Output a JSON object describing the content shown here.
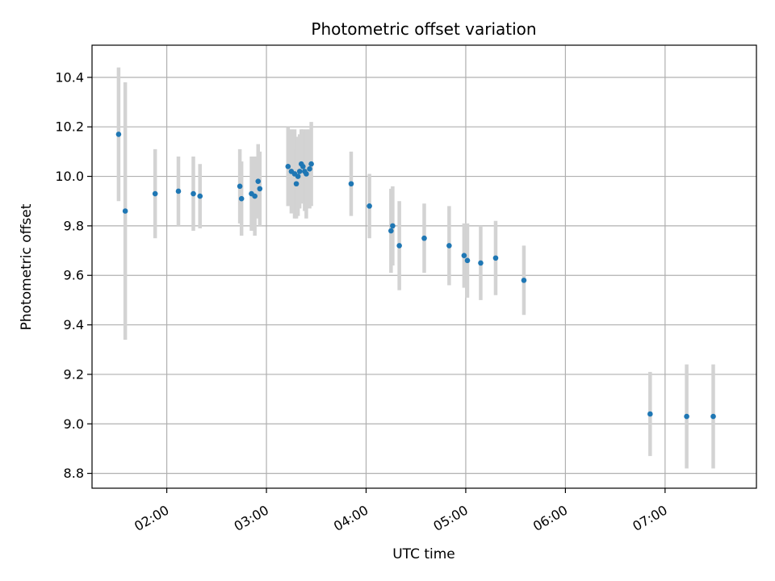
{
  "chart_data": {
    "type": "scatter",
    "title": "Photometric offset variation",
    "xlabel": "UTC time",
    "ylabel": "Photometric offset",
    "x_unit": "UTC time (HH:MM)",
    "xlim": [
      "01:15",
      "07:55"
    ],
    "ylim": [
      8.74,
      10.53
    ],
    "x_ticks": [
      "02:00",
      "03:00",
      "04:00",
      "05:00",
      "06:00",
      "07:00"
    ],
    "y_ticks": [
      "8.8",
      "9.0",
      "9.2",
      "9.4",
      "9.6",
      "9.8",
      "10.0",
      "10.2",
      "10.4"
    ],
    "grid": true,
    "legend": "none",
    "colors": {
      "marker": "#1f77b4",
      "error_bar": "#d3d3d3",
      "grid": "#b0b0b0"
    },
    "series": [
      {
        "points": [
          {
            "x": "01:31",
            "y": 10.17,
            "err": 0.27
          },
          {
            "x": "01:35",
            "y": 9.86,
            "err": 0.52
          },
          {
            "x": "01:53",
            "y": 9.93,
            "err": 0.18
          },
          {
            "x": "02:07",
            "y": 9.94,
            "err": 0.14
          },
          {
            "x": "02:16",
            "y": 9.93,
            "err": 0.15
          },
          {
            "x": "02:20",
            "y": 9.92,
            "err": 0.13
          },
          {
            "x": "02:44",
            "y": 9.96,
            "err": 0.15
          },
          {
            "x": "02:45",
            "y": 9.91,
            "err": 0.15
          },
          {
            "x": "02:51",
            "y": 9.93,
            "err": 0.15
          },
          {
            "x": "02:53",
            "y": 9.92,
            "err": 0.16
          },
          {
            "x": "02:55",
            "y": 9.98,
            "err": 0.15
          },
          {
            "x": "02:56",
            "y": 9.95,
            "err": 0.15
          },
          {
            "x": "03:13",
            "y": 10.04,
            "err": 0.16
          },
          {
            "x": "03:15",
            "y": 10.02,
            "err": 0.17
          },
          {
            "x": "03:17",
            "y": 10.01,
            "err": 0.18
          },
          {
            "x": "03:18",
            "y": 9.97,
            "err": 0.14
          },
          {
            "x": "03:19",
            "y": 10.0,
            "err": 0.16
          },
          {
            "x": "03:20",
            "y": 10.02,
            "err": 0.15
          },
          {
            "x": "03:21",
            "y": 10.05,
            "err": 0.14
          },
          {
            "x": "03:22",
            "y": 10.04,
            "err": 0.15
          },
          {
            "x": "03:23",
            "y": 10.02,
            "err": 0.16
          },
          {
            "x": "03:24",
            "y": 10.01,
            "err": 0.18
          },
          {
            "x": "03:26",
            "y": 10.03,
            "err": 0.16
          },
          {
            "x": "03:27",
            "y": 10.05,
            "err": 0.17
          },
          {
            "x": "03:51",
            "y": 9.97,
            "err": 0.13
          },
          {
            "x": "04:02",
            "y": 9.88,
            "err": 0.13
          },
          {
            "x": "04:15",
            "y": 9.78,
            "err": 0.17
          },
          {
            "x": "04:16",
            "y": 9.8,
            "err": 0.16
          },
          {
            "x": "04:20",
            "y": 9.72,
            "err": 0.18
          },
          {
            "x": "04:35",
            "y": 9.75,
            "err": 0.14
          },
          {
            "x": "04:50",
            "y": 9.72,
            "err": 0.16
          },
          {
            "x": "04:59",
            "y": 9.68,
            "err": 0.13
          },
          {
            "x": "05:01",
            "y": 9.66,
            "err": 0.15
          },
          {
            "x": "05:09",
            "y": 9.65,
            "err": 0.15
          },
          {
            "x": "05:18",
            "y": 9.67,
            "err": 0.15
          },
          {
            "x": "05:35",
            "y": 9.58,
            "err": 0.14
          },
          {
            "x": "06:51",
            "y": 9.04,
            "err": 0.17
          },
          {
            "x": "07:13",
            "y": 9.03,
            "err": 0.21
          },
          {
            "x": "07:29",
            "y": 9.03,
            "err": 0.21
          }
        ]
      }
    ]
  }
}
